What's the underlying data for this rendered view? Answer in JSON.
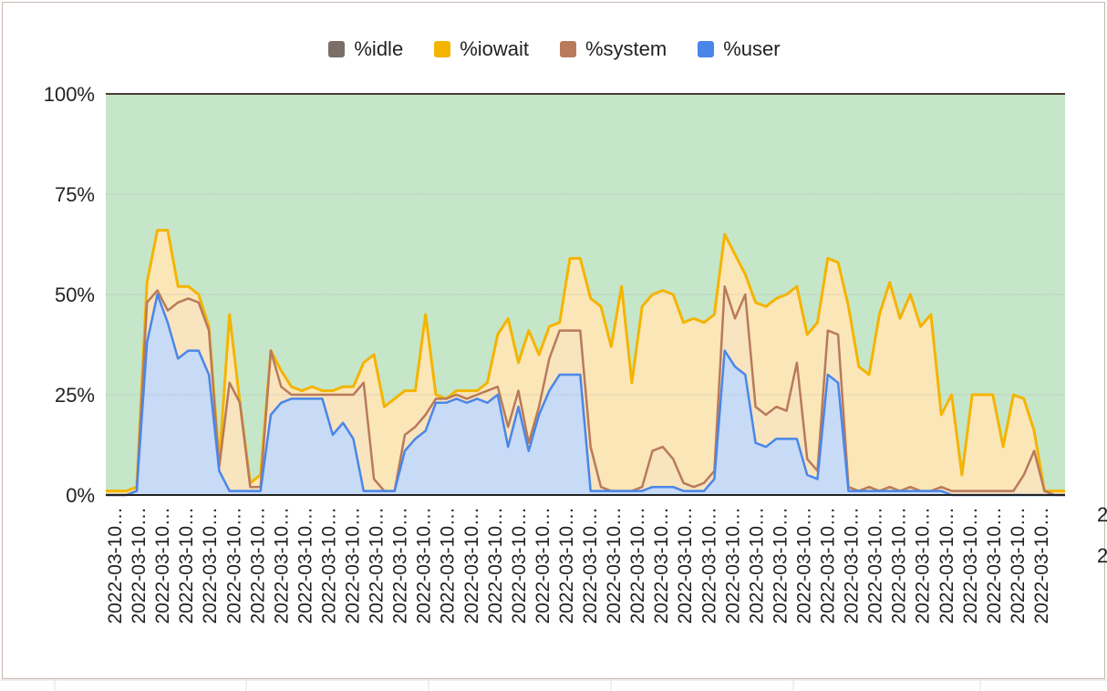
{
  "chart_data": {
    "type": "area",
    "stacked": true,
    "y_tick_labels": [
      "0%",
      "25%",
      "50%",
      "75%",
      "100%"
    ],
    "ylim": [
      0,
      100
    ],
    "x_tick_label": "2022-03-10…",
    "x_tick_count": 40,
    "legend_position": "top",
    "series": [
      {
        "name": "%idle",
        "color": "#c6e6c9",
        "legend_color": "#7a6e66",
        "line": "#4a3c38"
      },
      {
        "name": "%iowait",
        "color": "#fbe6b8",
        "legend_color": "#f4b400",
        "line": "#f4b400"
      },
      {
        "name": "%system",
        "color": "#f8e4bf",
        "legend_color": "#b97a5b",
        "line": "#b97a5b"
      },
      {
        "name": "%user",
        "color": "#c7daf6",
        "legend_color": "#4a86e8",
        "line": "#4a86e8"
      }
    ],
    "cumulative_points": [
      {
        "t": 0,
        "user": 0,
        "system": 0,
        "iowait": 1
      },
      {
        "t": 2,
        "user": 0,
        "system": 0,
        "iowait": 1
      },
      {
        "t": 3,
        "user": 1,
        "system": 1,
        "iowait": 2
      },
      {
        "t": 4,
        "user": 38,
        "system": 48,
        "iowait": 53
      },
      {
        "t": 5,
        "user": 50,
        "system": 51,
        "iowait": 66
      },
      {
        "t": 6,
        "user": 43,
        "system": 46,
        "iowait": 66
      },
      {
        "t": 7,
        "user": 34,
        "system": 48,
        "iowait": 52
      },
      {
        "t": 8,
        "user": 36,
        "system": 49,
        "iowait": 52
      },
      {
        "t": 9,
        "user": 36,
        "system": 48,
        "iowait": 50
      },
      {
        "t": 10,
        "user": 30,
        "system": 41,
        "iowait": 42
      },
      {
        "t": 11,
        "user": 6,
        "system": 7,
        "iowait": 8
      },
      {
        "t": 12,
        "user": 1,
        "system": 28,
        "iowait": 45
      },
      {
        "t": 13,
        "user": 1,
        "system": 23,
        "iowait": 23
      },
      {
        "t": 14,
        "user": 1,
        "system": 2,
        "iowait": 3
      },
      {
        "t": 15,
        "user": 1,
        "system": 2,
        "iowait": 5
      },
      {
        "t": 16,
        "user": 20,
        "system": 36,
        "iowait": 36
      },
      {
        "t": 17,
        "user": 23,
        "system": 27,
        "iowait": 31
      },
      {
        "t": 18,
        "user": 24,
        "system": 25,
        "iowait": 27
      },
      {
        "t": 19,
        "user": 24,
        "system": 25,
        "iowait": 26
      },
      {
        "t": 20,
        "user": 24,
        "system": 25,
        "iowait": 27
      },
      {
        "t": 21,
        "user": 24,
        "system": 25,
        "iowait": 26
      },
      {
        "t": 22,
        "user": 15,
        "system": 25,
        "iowait": 26
      },
      {
        "t": 23,
        "user": 18,
        "system": 25,
        "iowait": 27
      },
      {
        "t": 24,
        "user": 14,
        "system": 25,
        "iowait": 27
      },
      {
        "t": 25,
        "user": 1,
        "system": 28,
        "iowait": 33
      },
      {
        "t": 26,
        "user": 1,
        "system": 4,
        "iowait": 35
      },
      {
        "t": 27,
        "user": 1,
        "system": 1,
        "iowait": 22
      },
      {
        "t": 28,
        "user": 1,
        "system": 1,
        "iowait": 24
      },
      {
        "t": 29,
        "user": 11,
        "system": 15,
        "iowait": 26
      },
      {
        "t": 30,
        "user": 14,
        "system": 17,
        "iowait": 26
      },
      {
        "t": 31,
        "user": 16,
        "system": 20,
        "iowait": 45
      },
      {
        "t": 32,
        "user": 23,
        "system": 24,
        "iowait": 25
      },
      {
        "t": 33,
        "user": 23,
        "system": 24,
        "iowait": 24
      },
      {
        "t": 34,
        "user": 24,
        "system": 25,
        "iowait": 26
      },
      {
        "t": 35,
        "user": 23,
        "system": 24,
        "iowait": 26
      },
      {
        "t": 36,
        "user": 24,
        "system": 25,
        "iowait": 26
      },
      {
        "t": 37,
        "user": 23,
        "system": 26,
        "iowait": 28
      },
      {
        "t": 38,
        "user": 25,
        "system": 27,
        "iowait": 40
      },
      {
        "t": 39,
        "user": 12,
        "system": 17,
        "iowait": 44
      },
      {
        "t": 40,
        "user": 22,
        "system": 26,
        "iowait": 33
      },
      {
        "t": 41,
        "user": 11,
        "system": 13,
        "iowait": 41
      },
      {
        "t": 42,
        "user": 20,
        "system": 22,
        "iowait": 35
      },
      {
        "t": 43,
        "user": 26,
        "system": 34,
        "iowait": 42
      },
      {
        "t": 44,
        "user": 30,
        "system": 41,
        "iowait": 43
      },
      {
        "t": 45,
        "user": 30,
        "system": 41,
        "iowait": 59
      },
      {
        "t": 46,
        "user": 30,
        "system": 41,
        "iowait": 59
      },
      {
        "t": 47,
        "user": 1,
        "system": 12,
        "iowait": 49
      },
      {
        "t": 48,
        "user": 1,
        "system": 2,
        "iowait": 47
      },
      {
        "t": 49,
        "user": 1,
        "system": 1,
        "iowait": 37
      },
      {
        "t": 50,
        "user": 1,
        "system": 1,
        "iowait": 52
      },
      {
        "t": 51,
        "user": 1,
        "system": 1,
        "iowait": 28
      },
      {
        "t": 52,
        "user": 1,
        "system": 2,
        "iowait": 47
      },
      {
        "t": 53,
        "user": 2,
        "system": 11,
        "iowait": 50
      },
      {
        "t": 54,
        "user": 2,
        "system": 12,
        "iowait": 51
      },
      {
        "t": 55,
        "user": 2,
        "system": 9,
        "iowait": 50
      },
      {
        "t": 56,
        "user": 1,
        "system": 3,
        "iowait": 43
      },
      {
        "t": 57,
        "user": 1,
        "system": 2,
        "iowait": 44
      },
      {
        "t": 58,
        "user": 1,
        "system": 3,
        "iowait": 43
      },
      {
        "t": 59,
        "user": 4,
        "system": 6,
        "iowait": 45
      },
      {
        "t": 60,
        "user": 36,
        "system": 52,
        "iowait": 65
      },
      {
        "t": 61,
        "user": 32,
        "system": 44,
        "iowait": 60
      },
      {
        "t": 62,
        "user": 30,
        "system": 50,
        "iowait": 55
      },
      {
        "t": 63,
        "user": 13,
        "system": 22,
        "iowait": 48
      },
      {
        "t": 64,
        "user": 12,
        "system": 20,
        "iowait": 47
      },
      {
        "t": 65,
        "user": 14,
        "system": 22,
        "iowait": 49
      },
      {
        "t": 66,
        "user": 14,
        "system": 21,
        "iowait": 50
      },
      {
        "t": 67,
        "user": 14,
        "system": 33,
        "iowait": 52
      },
      {
        "t": 68,
        "user": 5,
        "system": 9,
        "iowait": 40
      },
      {
        "t": 69,
        "user": 4,
        "system": 6,
        "iowait": 43
      },
      {
        "t": 70,
        "user": 30,
        "system": 41,
        "iowait": 59
      },
      {
        "t": 71,
        "user": 28,
        "system": 40,
        "iowait": 58
      },
      {
        "t": 72,
        "user": 1,
        "system": 2,
        "iowait": 47
      },
      {
        "t": 73,
        "user": 1,
        "system": 1,
        "iowait": 32
      },
      {
        "t": 74,
        "user": 1,
        "system": 2,
        "iowait": 30
      },
      {
        "t": 75,
        "user": 1,
        "system": 1,
        "iowait": 45
      },
      {
        "t": 76,
        "user": 1,
        "system": 2,
        "iowait": 53
      },
      {
        "t": 77,
        "user": 1,
        "system": 1,
        "iowait": 44
      },
      {
        "t": 78,
        "user": 1,
        "system": 2,
        "iowait": 50
      },
      {
        "t": 79,
        "user": 1,
        "system": 1,
        "iowait": 42
      },
      {
        "t": 80,
        "user": 1,
        "system": 1,
        "iowait": 45
      },
      {
        "t": 81,
        "user": 1,
        "system": 2,
        "iowait": 20
      },
      {
        "t": 82,
        "user": 0,
        "system": 1,
        "iowait": 25
      },
      {
        "t": 83,
        "user": 0,
        "system": 1,
        "iowait": 5
      },
      {
        "t": 84,
        "user": 0,
        "system": 1,
        "iowait": 25
      },
      {
        "t": 85,
        "user": 0,
        "system": 1,
        "iowait": 25
      },
      {
        "t": 86,
        "user": 0,
        "system": 1,
        "iowait": 25
      },
      {
        "t": 87,
        "user": 0,
        "system": 1,
        "iowait": 12
      },
      {
        "t": 88,
        "user": 0,
        "system": 1,
        "iowait": 25
      },
      {
        "t": 89,
        "user": 0,
        "system": 5,
        "iowait": 24
      },
      {
        "t": 90,
        "user": 0,
        "system": 11,
        "iowait": 16
      },
      {
        "t": 91,
        "user": 0,
        "system": 1,
        "iowait": 1
      },
      {
        "t": 92,
        "user": 0,
        "system": 0,
        "iowait": 1
      },
      {
        "t": 93,
        "user": 0,
        "system": 0,
        "iowait": 1
      }
    ],
    "peek_labels": [
      "2",
      "2"
    ]
  }
}
